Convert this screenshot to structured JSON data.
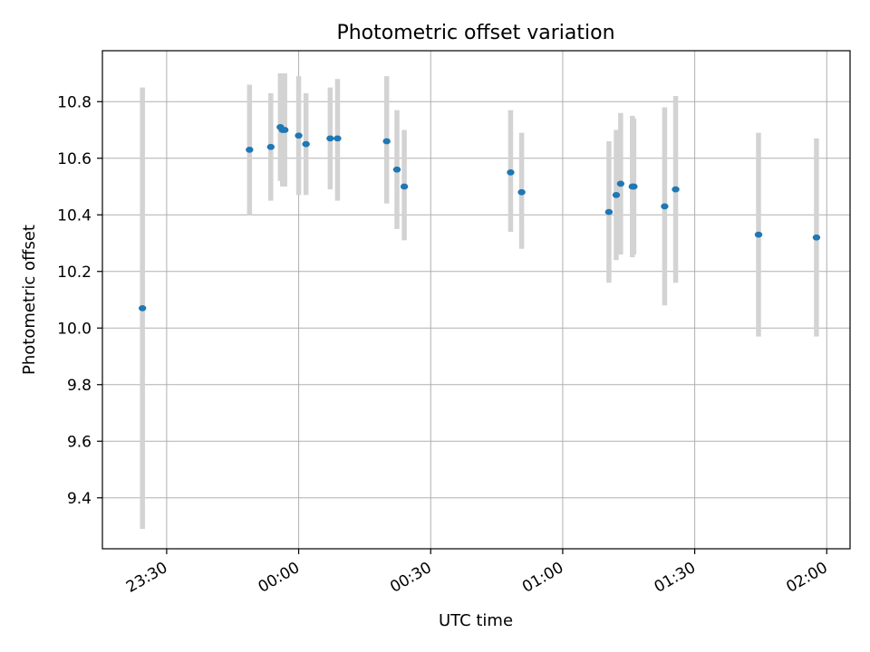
{
  "chart_data": {
    "type": "scatter",
    "title": "Photometric offset variation",
    "xlabel": "UTC time",
    "ylabel": "Photometric offset",
    "x_ticks": [
      "23:30",
      "00:00",
      "00:30",
      "01:00",
      "01:30",
      "02:00"
    ],
    "x_tick_minutes": [
      -30,
      0,
      30,
      60,
      90,
      120
    ],
    "xlim_minutes": [
      -44.6,
      125.3
    ],
    "y_ticks": [
      "9.4",
      "9.6",
      "9.8",
      "10.0",
      "10.2",
      "10.4",
      "10.6",
      "10.8"
    ],
    "y_tick_values": [
      9.4,
      9.6,
      9.8,
      10.0,
      10.2,
      10.4,
      10.6,
      10.8
    ],
    "ylim": [
      9.22,
      10.98
    ],
    "grid": true,
    "marker_color": "#1f77b4",
    "errorbar_color": "#d3d3d3",
    "points": [
      {
        "t": "23:24:30",
        "y": 10.07,
        "lo": 9.29,
        "hi": 10.85
      },
      {
        "t": "23:48:50",
        "y": 10.63,
        "lo": 10.4,
        "hi": 10.86
      },
      {
        "t": "23:53:40",
        "y": 10.64,
        "lo": 10.45,
        "hi": 10.83
      },
      {
        "t": "23:55:50",
        "y": 10.71,
        "lo": 10.52,
        "hi": 10.9
      },
      {
        "t": "23:56:20",
        "y": 10.7,
        "lo": 10.5,
        "hi": 10.9
      },
      {
        "t": "23:56:50",
        "y": 10.7,
        "lo": 10.5,
        "hi": 10.9
      },
      {
        "t": "00:00:00",
        "y": 10.68,
        "lo": 10.47,
        "hi": 10.89
      },
      {
        "t": "00:01:40",
        "y": 10.65,
        "lo": 10.47,
        "hi": 10.83
      },
      {
        "t": "00:07:10",
        "y": 10.67,
        "lo": 10.49,
        "hi": 10.85
      },
      {
        "t": "00:08:50",
        "y": 10.67,
        "lo": 10.45,
        "hi": 10.88
      },
      {
        "t": "00:20:00",
        "y": 10.66,
        "lo": 10.44,
        "hi": 10.89
      },
      {
        "t": "00:22:20",
        "y": 10.56,
        "lo": 10.35,
        "hi": 10.77
      },
      {
        "t": "00:24:00",
        "y": 10.5,
        "lo": 10.31,
        "hi": 10.7
      },
      {
        "t": "00:48:10",
        "y": 10.55,
        "lo": 10.34,
        "hi": 10.77
      },
      {
        "t": "00:50:40",
        "y": 10.48,
        "lo": 10.28,
        "hi": 10.69
      },
      {
        "t": "01:10:30",
        "y": 10.41,
        "lo": 10.16,
        "hi": 10.66
      },
      {
        "t": "01:12:10",
        "y": 10.47,
        "lo": 10.24,
        "hi": 10.7
      },
      {
        "t": "01:13:10",
        "y": 10.51,
        "lo": 10.26,
        "hi": 10.76
      },
      {
        "t": "01:15:50",
        "y": 10.5,
        "lo": 10.25,
        "hi": 10.75
      },
      {
        "t": "01:16:10",
        "y": 10.5,
        "lo": 10.26,
        "hi": 10.74
      },
      {
        "t": "01:23:10",
        "y": 10.43,
        "lo": 10.08,
        "hi": 10.78
      },
      {
        "t": "01:25:40",
        "y": 10.49,
        "lo": 10.16,
        "hi": 10.82
      },
      {
        "t": "01:44:30",
        "y": 10.33,
        "lo": 9.97,
        "hi": 10.69
      },
      {
        "t": "01:57:40",
        "y": 10.32,
        "lo": 9.97,
        "hi": 10.67
      }
    ]
  }
}
